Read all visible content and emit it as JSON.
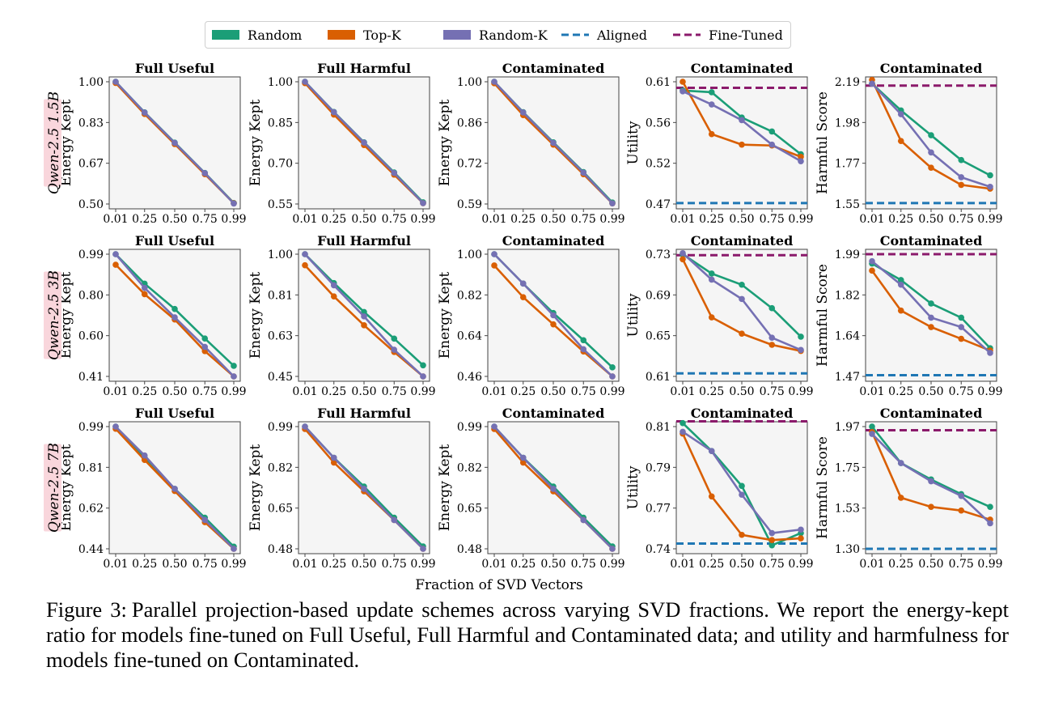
{
  "legend": [
    {
      "label": "Random",
      "color": "#1b9e77",
      "style": "patch"
    },
    {
      "label": "Top-K",
      "color": "#d95f02",
      "style": "patch"
    },
    {
      "label": "Random-K",
      "color": "#7570b3",
      "style": "patch"
    },
    {
      "label": "Aligned",
      "color": "#1f77b4",
      "style": "dashed"
    },
    {
      "label": "Fine-Tuned",
      "color": "#8b1a6b",
      "style": "dashed"
    }
  ],
  "x_axis_label": "Fraction of SVD Vectors",
  "row_labels": [
    "Qwen-2.5 1.5B",
    "Qwen-2.5 3B",
    "Qwen-2.5 7B"
  ],
  "caption": {
    "prefix": "Figure 3:",
    "text": "Parallel projection-based update schemes across varying SVD fractions. We report the energy-kept ratio for models fine-tuned on Full Useful, Full Harmful and Contaminated data; and utility and harmfulness for models fine-tuned on Contaminated."
  },
  "chart_data": [
    {
      "type": "line",
      "row": 0,
      "col": 0,
      "title": "Full Useful",
      "ylabel": "Energy Kept",
      "x": [
        0.01,
        0.25,
        0.5,
        0.75,
        0.99
      ],
      "xticks": [
        "0.01",
        "0.25",
        "0.50",
        "0.75",
        "0.99"
      ],
      "ylim": [
        0.5,
        1.0
      ],
      "yticks": [
        "1.00",
        "0.83",
        "0.67",
        "0.50"
      ],
      "series": [
        {
          "name": "Random",
          "values": [
            1.0,
            0.875,
            0.751,
            0.627,
            0.504
          ]
        },
        {
          "name": "Top-K",
          "values": [
            0.995,
            0.868,
            0.745,
            0.622,
            0.503
          ]
        },
        {
          "name": "Random-K",
          "values": [
            1.0,
            0.874,
            0.75,
            0.626,
            0.502
          ]
        }
      ]
    },
    {
      "type": "line",
      "row": 0,
      "col": 1,
      "title": "Full Harmful",
      "ylabel": "Energy Kept",
      "x": [
        0.01,
        0.25,
        0.5,
        0.75,
        0.99
      ],
      "xticks": [
        "0.01",
        "0.25",
        "0.50",
        "0.75",
        "0.99"
      ],
      "ylim": [
        0.55,
        1.0
      ],
      "yticks": [
        "1.00",
        "0.85",
        "0.70",
        "0.55"
      ],
      "series": [
        {
          "name": "Random",
          "values": [
            1.0,
            0.889,
            0.777,
            0.666,
            0.556
          ]
        },
        {
          "name": "Top-K",
          "values": [
            0.995,
            0.879,
            0.767,
            0.658,
            0.553
          ]
        },
        {
          "name": "Random-K",
          "values": [
            1.0,
            0.888,
            0.776,
            0.664,
            0.553
          ]
        }
      ]
    },
    {
      "type": "line",
      "row": 0,
      "col": 2,
      "title": "Contaminated",
      "ylabel": "Energy Kept",
      "x": [
        0.01,
        0.25,
        0.5,
        0.75,
        0.99
      ],
      "xticks": [
        "0.01",
        "0.25",
        "0.50",
        "0.75",
        "0.99"
      ],
      "ylim": [
        0.59,
        1.0
      ],
      "yticks": [
        "1.00",
        "0.86",
        "0.72",
        "0.59"
      ],
      "series": [
        {
          "name": "Random",
          "values": [
            1.0,
            0.898,
            0.797,
            0.697,
            0.595
          ]
        },
        {
          "name": "Top-K",
          "values": [
            0.995,
            0.888,
            0.789,
            0.69,
            0.592
          ]
        },
        {
          "name": "Random-K",
          "values": [
            1.0,
            0.897,
            0.795,
            0.695,
            0.592
          ]
        }
      ]
    },
    {
      "type": "line",
      "row": 0,
      "col": 3,
      "title": "Contaminated",
      "ylabel": "Utility",
      "x": [
        0.01,
        0.25,
        0.5,
        0.75,
        0.99
      ],
      "xticks": [
        "0.01",
        "0.25",
        "0.50",
        "0.75",
        "0.99"
      ],
      "ylim": [
        0.47,
        0.61
      ],
      "yticks": [
        "0.61",
        "0.56",
        "0.52",
        "0.47"
      ],
      "baselines": [
        {
          "name": "Aligned",
          "value": 0.471
        },
        {
          "name": "Fine-Tuned",
          "value": 0.603
        }
      ],
      "series": [
        {
          "name": "Random",
          "values": [
            0.6,
            0.598,
            0.569,
            0.553,
            0.527
          ]
        },
        {
          "name": "Top-K",
          "values": [
            0.61,
            0.55,
            0.538,
            0.537,
            0.524
          ]
        },
        {
          "name": "Random-K",
          "values": [
            0.599,
            0.584,
            0.566,
            0.538,
            0.519
          ]
        }
      ]
    },
    {
      "type": "line",
      "row": 0,
      "col": 4,
      "title": "Contaminated",
      "ylabel": "Harmful Score",
      "x": [
        0.01,
        0.25,
        0.5,
        0.75,
        0.99
      ],
      "xticks": [
        "0.01",
        "0.25",
        "0.50",
        "0.75",
        "0.99"
      ],
      "ylim": [
        1.55,
        2.19
      ],
      "yticks": [
        "2.19",
        "1.98",
        "1.77",
        "1.55"
      ],
      "baselines": [
        {
          "name": "Aligned",
          "value": 1.555
        },
        {
          "name": "Fine-Tuned",
          "value": 2.17
        }
      ],
      "series": [
        {
          "name": "Random",
          "values": [
            2.18,
            2.04,
            1.91,
            1.78,
            1.7
          ]
        },
        {
          "name": "Top-K",
          "values": [
            2.2,
            1.88,
            1.74,
            1.65,
            1.63
          ]
        },
        {
          "name": "Random-K",
          "values": [
            2.18,
            2.02,
            1.82,
            1.69,
            1.64
          ]
        }
      ]
    },
    {
      "type": "line",
      "row": 1,
      "col": 0,
      "title": "Full Useful",
      "ylabel": "Energy Kept",
      "x": [
        0.01,
        0.25,
        0.5,
        0.75,
        0.99
      ],
      "xticks": [
        "0.01",
        "0.25",
        "0.50",
        "0.75",
        "0.99"
      ],
      "ylim": [
        0.41,
        0.99
      ],
      "yticks": [
        "0.99",
        "0.80",
        "0.60",
        "0.41"
      ],
      "series": [
        {
          "name": "Random",
          "values": [
            0.99,
            0.85,
            0.73,
            0.59,
            0.46
          ]
        },
        {
          "name": "Top-K",
          "values": [
            0.94,
            0.8,
            0.68,
            0.53,
            0.41
          ]
        },
        {
          "name": "Random-K",
          "values": [
            0.99,
            0.83,
            0.69,
            0.55,
            0.41
          ]
        }
      ]
    },
    {
      "type": "line",
      "row": 1,
      "col": 1,
      "title": "Full Harmful",
      "ylabel": "Energy Kept",
      "x": [
        0.01,
        0.25,
        0.5,
        0.75,
        0.99
      ],
      "xticks": [
        "0.01",
        "0.25",
        "0.50",
        "0.75",
        "0.99"
      ],
      "ylim": [
        0.45,
        1.0
      ],
      "yticks": [
        "1.00",
        "0.81",
        "0.63",
        "0.45"
      ],
      "series": [
        {
          "name": "Random",
          "values": [
            1.0,
            0.87,
            0.74,
            0.62,
            0.5
          ]
        },
        {
          "name": "Top-K",
          "values": [
            0.95,
            0.81,
            0.68,
            0.56,
            0.45
          ]
        },
        {
          "name": "Random-K",
          "values": [
            1.0,
            0.86,
            0.72,
            0.57,
            0.45
          ]
        }
      ]
    },
    {
      "type": "line",
      "row": 1,
      "col": 2,
      "title": "Contaminated",
      "ylabel": "Energy Kept",
      "x": [
        0.01,
        0.25,
        0.5,
        0.75,
        0.99
      ],
      "xticks": [
        "0.01",
        "0.25",
        "0.50",
        "0.75",
        "0.99"
      ],
      "ylim": [
        0.46,
        1.0
      ],
      "yticks": [
        "1.00",
        "0.82",
        "0.64",
        "0.46"
      ],
      "series": [
        {
          "name": "Random",
          "values": [
            1.0,
            0.87,
            0.74,
            0.62,
            0.5
          ]
        },
        {
          "name": "Top-K",
          "values": [
            0.95,
            0.81,
            0.69,
            0.57,
            0.46
          ]
        },
        {
          "name": "Random-K",
          "values": [
            1.0,
            0.87,
            0.73,
            0.58,
            0.46
          ]
        }
      ]
    },
    {
      "type": "line",
      "row": 1,
      "col": 3,
      "title": "Contaminated",
      "ylabel": "Utility",
      "x": [
        0.01,
        0.25,
        0.5,
        0.75,
        0.99
      ],
      "xticks": [
        "0.01",
        "0.25",
        "0.50",
        "0.75",
        "0.99"
      ],
      "ylim": [
        0.61,
        0.73
      ],
      "yticks": [
        "0.73",
        "0.69",
        "0.65",
        "0.61"
      ],
      "baselines": [
        {
          "name": "Aligned",
          "value": 0.613
        },
        {
          "name": "Fine-Tuned",
          "value": 0.729
        }
      ],
      "series": [
        {
          "name": "Random",
          "values": [
            0.73,
            0.711,
            0.7,
            0.677,
            0.649
          ]
        },
        {
          "name": "Top-K",
          "values": [
            0.725,
            0.668,
            0.652,
            0.641,
            0.635
          ]
        },
        {
          "name": "Random-K",
          "values": [
            0.731,
            0.705,
            0.686,
            0.648,
            0.636
          ]
        }
      ]
    },
    {
      "type": "line",
      "row": 1,
      "col": 4,
      "title": "Contaminated",
      "ylabel": "Harmful Score",
      "x": [
        0.01,
        0.25,
        0.5,
        0.75,
        0.99
      ],
      "xticks": [
        "0.01",
        "0.25",
        "0.50",
        "0.75",
        "0.99"
      ],
      "ylim": [
        1.47,
        1.99
      ],
      "yticks": [
        "1.99",
        "1.82",
        "1.64",
        "1.47"
      ],
      "baselines": [
        {
          "name": "Aligned",
          "value": 1.475
        },
        {
          "name": "Fine-Tuned",
          "value": 1.99
        }
      ],
      "series": [
        {
          "name": "Random",
          "values": [
            1.95,
            1.88,
            1.78,
            1.72,
            1.59
          ]
        },
        {
          "name": "Top-K",
          "values": [
            1.92,
            1.75,
            1.68,
            1.63,
            1.58
          ]
        },
        {
          "name": "Random-K",
          "values": [
            1.96,
            1.86,
            1.72,
            1.68,
            1.57
          ]
        }
      ]
    },
    {
      "type": "line",
      "row": 2,
      "col": 0,
      "title": "Full Useful",
      "ylabel": "Energy Kept",
      "x": [
        0.01,
        0.25,
        0.5,
        0.75,
        0.99
      ],
      "xticks": [
        "0.01",
        "0.25",
        "0.50",
        "0.75",
        "0.99"
      ],
      "ylim": [
        0.44,
        0.99
      ],
      "yticks": [
        "0.99",
        "0.81",
        "0.62",
        "0.44"
      ],
      "series": [
        {
          "name": "Random",
          "values": [
            0.99,
            0.85,
            0.71,
            0.58,
            0.45
          ]
        },
        {
          "name": "Top-K",
          "values": [
            0.98,
            0.84,
            0.7,
            0.56,
            0.44
          ]
        },
        {
          "name": "Random-K",
          "values": [
            0.99,
            0.86,
            0.71,
            0.57,
            0.44
          ]
        }
      ]
    },
    {
      "type": "line",
      "row": 2,
      "col": 1,
      "title": "Full Harmful",
      "ylabel": "Energy Kept",
      "x": [
        0.01,
        0.25,
        0.5,
        0.75,
        0.99
      ],
      "xticks": [
        "0.01",
        "0.25",
        "0.50",
        "0.75",
        "0.99"
      ],
      "ylim": [
        0.48,
        0.99
      ],
      "yticks": [
        "0.99",
        "0.82",
        "0.65",
        "0.48"
      ],
      "series": [
        {
          "name": "Random",
          "values": [
            0.99,
            0.86,
            0.74,
            0.61,
            0.49
          ]
        },
        {
          "name": "Top-K",
          "values": [
            0.98,
            0.84,
            0.72,
            0.6,
            0.48
          ]
        },
        {
          "name": "Random-K",
          "values": [
            0.99,
            0.86,
            0.73,
            0.6,
            0.48
          ]
        }
      ]
    },
    {
      "type": "line",
      "row": 2,
      "col": 2,
      "title": "Contaminated",
      "ylabel": "Energy Kept",
      "x": [
        0.01,
        0.25,
        0.5,
        0.75,
        0.99
      ],
      "xticks": [
        "0.01",
        "0.25",
        "0.50",
        "0.75",
        "0.99"
      ],
      "ylim": [
        0.48,
        0.99
      ],
      "yticks": [
        "0.99",
        "0.82",
        "0.65",
        "0.48"
      ],
      "series": [
        {
          "name": "Random",
          "values": [
            0.99,
            0.86,
            0.74,
            0.61,
            0.49
          ]
        },
        {
          "name": "Top-K",
          "values": [
            0.98,
            0.84,
            0.72,
            0.6,
            0.48
          ]
        },
        {
          "name": "Random-K",
          "values": [
            0.99,
            0.86,
            0.73,
            0.6,
            0.48
          ]
        }
      ]
    },
    {
      "type": "line",
      "row": 2,
      "col": 3,
      "title": "Contaminated",
      "ylabel": "Utility",
      "x": [
        0.01,
        0.25,
        0.5,
        0.75,
        0.99
      ],
      "xticks": [
        "0.01",
        "0.25",
        "0.50",
        "0.75",
        "0.99"
      ],
      "ylim": [
        0.74,
        0.81
      ],
      "yticks": [
        "0.81",
        "0.79",
        "0.77",
        "0.74"
      ],
      "baselines": [
        {
          "name": "Aligned",
          "value": 0.743
        },
        {
          "name": "Fine-Tuned",
          "value": 0.813
        }
      ],
      "series": [
        {
          "name": "Random",
          "values": [
            0.812,
            0.796,
            0.776,
            0.742,
            0.749
          ]
        },
        {
          "name": "Top-K",
          "values": [
            0.806,
            0.77,
            0.748,
            0.745,
            0.746
          ]
        },
        {
          "name": "Random-K",
          "values": [
            0.807,
            0.796,
            0.771,
            0.749,
            0.751
          ]
        }
      ]
    },
    {
      "type": "line",
      "row": 2,
      "col": 4,
      "title": "Contaminated",
      "ylabel": "Harmful Score",
      "x": [
        0.01,
        0.25,
        0.5,
        0.75,
        0.99
      ],
      "xticks": [
        "0.01",
        "0.25",
        "0.50",
        "0.75",
        "0.99"
      ],
      "ylim": [
        1.3,
        1.97
      ],
      "yticks": [
        "1.97",
        "1.75",
        "1.53",
        "1.30"
      ],
      "baselines": [
        {
          "name": "Aligned",
          "value": 1.3
        },
        {
          "name": "Fine-Tuned",
          "value": 1.95
        }
      ],
      "series": [
        {
          "name": "Random",
          "values": [
            1.97,
            1.77,
            1.68,
            1.6,
            1.53
          ]
        },
        {
          "name": "Top-K",
          "values": [
            1.94,
            1.58,
            1.53,
            1.51,
            1.46
          ]
        },
        {
          "name": "Random-K",
          "values": [
            1.93,
            1.77,
            1.67,
            1.59,
            1.44
          ]
        }
      ]
    }
  ]
}
